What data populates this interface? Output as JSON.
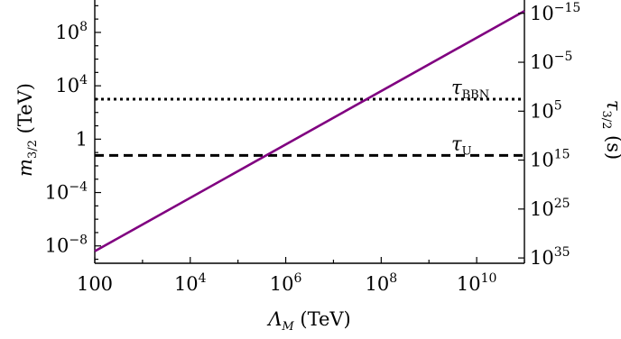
{
  "chart_data": {
    "type": "line",
    "title": "",
    "xlabel": "Λ_M (TeV)",
    "ylabel": "m_{3/2} (TeV)",
    "ylabel_right": "τ_{3/2} (s)",
    "xscale": "log",
    "yscale": "log",
    "xlim": [
      100,
      100000000000.0
    ],
    "ylim": [
      5e-10,
      50000000000.0
    ],
    "x_ticks": [
      {
        "value": 100,
        "label": "100"
      },
      {
        "value": 10000,
        "label": "10^4"
      },
      {
        "value": 1000000,
        "label": "10^6"
      },
      {
        "value": 100000000,
        "label": "10^8"
      },
      {
        "value": 10000000000,
        "label": "10^10"
      }
    ],
    "y_ticks": [
      {
        "value": 1e-08,
        "label": "10^-8"
      },
      {
        "value": 0.0001,
        "label": "10^-4"
      },
      {
        "value": 1,
        "label": "1"
      },
      {
        "value": 10000,
        "label": "10^4"
      },
      {
        "value": 100000000.0,
        "label": "10^8"
      }
    ],
    "right_ticks": [
      {
        "m_value": 2700000000.0,
        "label": "10^-15"
      },
      {
        "m_value": 580000.0,
        "label": "10^-5"
      },
      {
        "m_value": 125,
        "label": "10^5"
      },
      {
        "m_value": 0.027,
        "label": "10^15"
      },
      {
        "m_value": 5.8e-06,
        "label": "10^25"
      },
      {
        "m_value": 1.25e-09,
        "label": "10^35"
      }
    ],
    "series": [
      {
        "style": "solid",
        "color": "#800080",
        "x": [
          100,
          100000000000.0
        ],
        "y": [
          4e-09,
          4000000000.0
        ]
      }
    ],
    "hlines": [
      {
        "y": 1000,
        "style": "dotted",
        "label": "τ_BBN",
        "label_main": "τ",
        "label_sub": "BBN"
      },
      {
        "y": 0.06,
        "style": "dashed",
        "label": "τ_U",
        "label_main": "τ",
        "label_sub": "U"
      }
    ]
  }
}
